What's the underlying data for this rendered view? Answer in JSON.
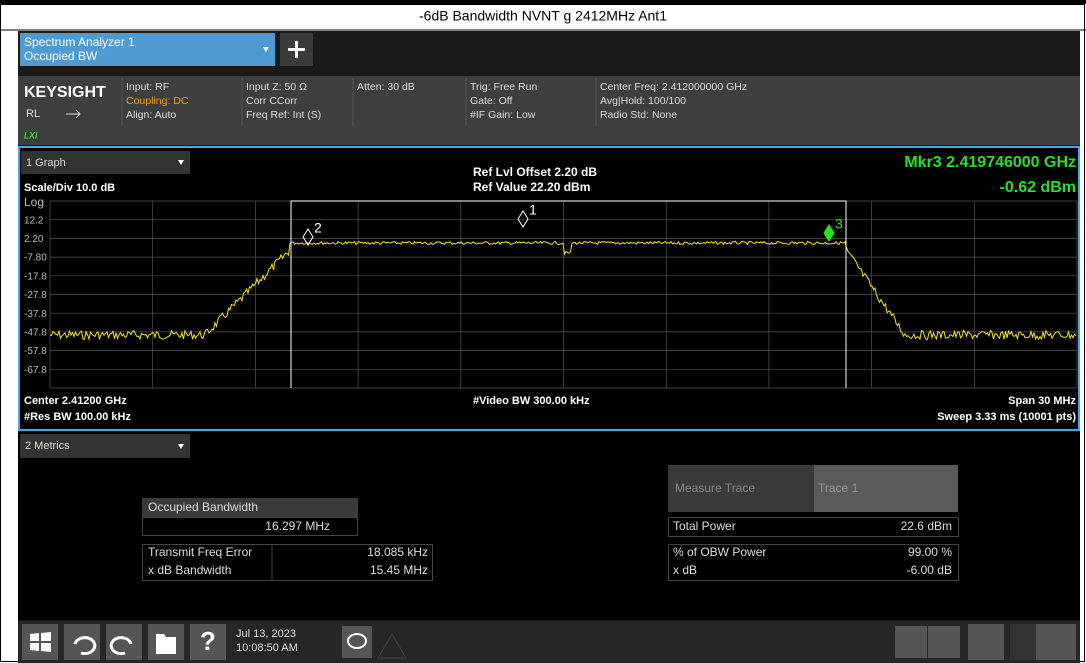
{
  "header": {
    "title": "-6dB Bandwidth NVNT g 2412MHz Ant1"
  },
  "tab": {
    "line1": "Spectrum Analyzer 1",
    "line2": "Occupied BW"
  },
  "info": {
    "brand": "KEYSIGHT",
    "rl": "RL",
    "lxi": "LXI",
    "col1": [
      "Input: RF",
      "Coupling: DC",
      "Align: Auto"
    ],
    "col2": [
      "Input Z: 50 Ω",
      "Corr CCorr",
      "Freq Ref: Int (S)"
    ],
    "col3": [
      "Atten: 30 dB"
    ],
    "col4": [
      "Trig: Free Run",
      "Gate: Off",
      "#IF Gain: Low"
    ],
    "col5": [
      "Center Freq: 2.412000000 GHz",
      "Avg|Hold: 100/100",
      "Radio Std: None"
    ]
  },
  "graph": {
    "selector": "1 Graph",
    "scale": "Scale/Div 10.0 dB",
    "ref_offset": "Ref Lvl Offset 2.20 dB",
    "ref_value": "Ref Value 22.20 dBm",
    "marker_freq": "Mkr3  2.419746000 GHz",
    "marker_level": "-0.62 dBm",
    "y_labels": [
      "Log",
      "12.2",
      "2.20",
      "-7.80",
      "-17.8",
      "-27.8",
      "-37.8",
      "-47.8",
      "-57.8",
      "-67.8"
    ],
    "markers": [
      "2",
      "1",
      "3"
    ],
    "center": "Center 2.41200 GHz",
    "res_bw": "#Res BW 100.00 kHz",
    "video_bw": "#Video BW 300.00 kHz",
    "span": "Span 30 MHz",
    "sweep": "Sweep 3.33 ms (10001 pts)"
  },
  "metrics": {
    "selector": "2 Metrics",
    "obw_label": "Occupied Bandwidth",
    "obw_value": "16.297 MHz",
    "left_rows": [
      [
        "Transmit Freq Error",
        "18.085 kHz"
      ],
      [
        "x dB Bandwidth",
        "15.45 MHz"
      ]
    ],
    "measure_trace": "Measure Trace",
    "trace": "Trace 1",
    "right_rows": [
      [
        "Total Power",
        "22.6 dBm"
      ],
      [
        "% of OBW Power",
        "99.00 %"
      ],
      [
        "x dB",
        "-6.00 dB"
      ]
    ]
  },
  "taskbar": {
    "date": "Jul 13, 2023",
    "time": "10:08:50 AM",
    "help": "?"
  }
}
